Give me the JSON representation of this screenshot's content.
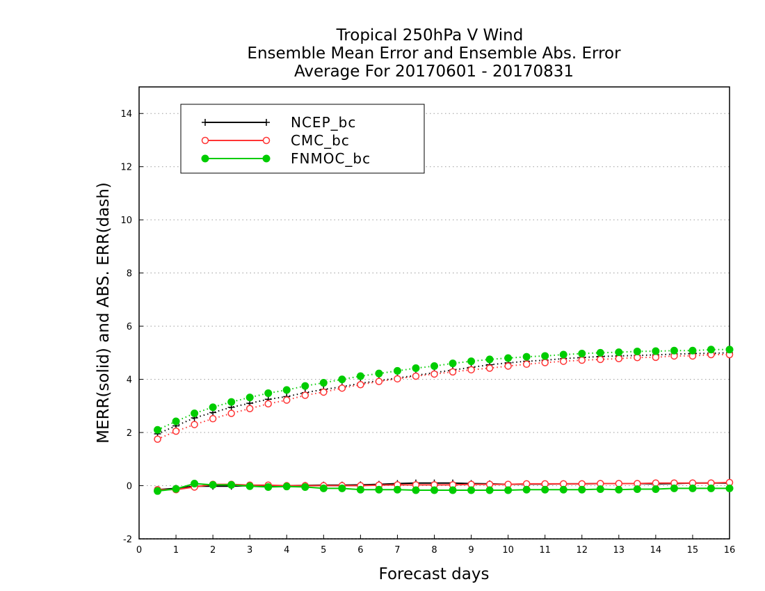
{
  "chart_data": {
    "type": "line",
    "title_lines": [
      "Tropical 250hPa V Wind",
      "Ensemble Mean Error and Ensemble Abs. Error",
      "Average For 20170601 - 20170831"
    ],
    "xlabel": "Forecast days",
    "ylabel": "MERR(solid) and ABS. ERR(dash)",
    "xlim": [
      0,
      16
    ],
    "ylim": [
      -2,
      15
    ],
    "xticks": [
      "0",
      "1",
      "2",
      "3",
      "4",
      "5",
      "6",
      "7",
      "8",
      "9",
      "10",
      "11",
      "12",
      "13",
      "14",
      "15",
      "16"
    ],
    "yticks": [
      "-2",
      "0",
      "2",
      "4",
      "6",
      "8",
      "10",
      "12",
      "14"
    ],
    "grid": "horizontal dotted",
    "legend_position": "top-left",
    "x": [
      0.5,
      1.0,
      1.5,
      2.0,
      2.5,
      3.0,
      3.5,
      4.0,
      4.5,
      5.0,
      5.5,
      6.0,
      6.5,
      7.0,
      7.5,
      8.0,
      8.5,
      9.0,
      9.5,
      10.0,
      10.5,
      11.0,
      11.5,
      12.0,
      12.5,
      13.0,
      13.5,
      14.0,
      14.5,
      15.0,
      15.5,
      16.0
    ],
    "series": [
      {
        "name": "NCEP_bc",
        "color": "#000000",
        "marker": "plus",
        "merr": [
          -0.15,
          -0.1,
          -0.02,
          -0.02,
          -0.02,
          0.0,
          0.0,
          0.0,
          0.01,
          0.02,
          0.02,
          0.03,
          0.05,
          0.08,
          0.1,
          0.1,
          0.1,
          0.08,
          0.07,
          0.05,
          0.06,
          0.06,
          0.07,
          0.07,
          0.08,
          0.08,
          0.08,
          0.07,
          0.08,
          0.1,
          0.1,
          0.1
        ],
        "abs_err": [
          1.95,
          2.25,
          2.55,
          2.75,
          2.95,
          3.1,
          3.25,
          3.35,
          3.5,
          3.62,
          3.72,
          3.85,
          3.95,
          4.05,
          4.15,
          4.25,
          4.35,
          4.45,
          4.55,
          4.62,
          4.68,
          4.72,
          4.78,
          4.82,
          4.86,
          4.88,
          4.9,
          4.92,
          4.95,
          4.97,
          4.98,
          5.0
        ]
      },
      {
        "name": "CMC_bc",
        "color": "#ff3333",
        "marker": "open-circle",
        "merr": [
          -0.15,
          -0.15,
          -0.05,
          0.05,
          0.05,
          0.02,
          0.02,
          0.0,
          0.0,
          0.0,
          0.0,
          0.0,
          0.02,
          0.03,
          0.03,
          0.03,
          0.03,
          0.05,
          0.05,
          0.05,
          0.07,
          0.07,
          0.07,
          0.07,
          0.08,
          0.08,
          0.08,
          0.1,
          0.1,
          0.1,
          0.1,
          0.12
        ],
        "abs_err": [
          1.75,
          2.05,
          2.3,
          2.52,
          2.72,
          2.9,
          3.08,
          3.22,
          3.4,
          3.52,
          3.67,
          3.8,
          3.92,
          4.02,
          4.12,
          4.2,
          4.28,
          4.36,
          4.42,
          4.5,
          4.57,
          4.63,
          4.68,
          4.72,
          4.75,
          4.78,
          4.82,
          4.83,
          4.88,
          4.88,
          4.93,
          4.93
        ]
      },
      {
        "name": "FNMOC_bc",
        "color": "#00cc00",
        "marker": "filled-circle",
        "merr": [
          -0.2,
          -0.12,
          0.08,
          0.03,
          0.03,
          -0.02,
          -0.05,
          -0.03,
          -0.05,
          -0.1,
          -0.1,
          -0.15,
          -0.15,
          -0.15,
          -0.17,
          -0.17,
          -0.17,
          -0.17,
          -0.17,
          -0.17,
          -0.15,
          -0.15,
          -0.15,
          -0.15,
          -0.13,
          -0.15,
          -0.13,
          -0.13,
          -0.1,
          -0.1,
          -0.1,
          -0.1
        ],
        "abs_err": [
          2.1,
          2.42,
          2.72,
          2.95,
          3.15,
          3.32,
          3.48,
          3.6,
          3.75,
          3.87,
          4.0,
          4.12,
          4.22,
          4.32,
          4.42,
          4.5,
          4.6,
          4.68,
          4.75,
          4.8,
          4.85,
          4.88,
          4.93,
          4.97,
          5.0,
          5.02,
          5.05,
          5.06,
          5.08,
          5.08,
          5.12,
          5.12
        ]
      }
    ]
  }
}
